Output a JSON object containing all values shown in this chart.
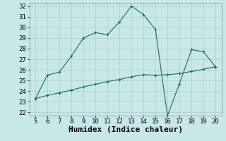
{
  "xlabel": "Humidex (Indice chaleur)",
  "background_color": "#c8e8e8",
  "line_color": "#1a6b5a",
  "xlim": [
    5,
    20
  ],
  "ylim": [
    22,
    32
  ],
  "xticks": [
    5,
    6,
    7,
    8,
    9,
    10,
    11,
    12,
    13,
    14,
    15,
    16,
    17,
    18,
    19,
    20
  ],
  "yticks": [
    22,
    23,
    24,
    25,
    26,
    27,
    28,
    29,
    30,
    31,
    32
  ],
  "curve1_x": [
    5,
    6,
    7,
    8,
    9,
    10,
    11,
    12,
    13,
    14,
    15,
    16,
    17,
    18,
    19,
    20
  ],
  "curve1_y": [
    23.3,
    25.5,
    25.8,
    27.3,
    29.0,
    29.5,
    29.3,
    30.5,
    32.0,
    31.2,
    29.8,
    21.7,
    24.7,
    27.9,
    27.7,
    26.3
  ],
  "curve2_x": [
    5,
    6,
    7,
    8,
    9,
    10,
    11,
    12,
    13,
    14,
    15,
    16,
    17,
    18,
    19,
    20
  ],
  "curve2_y": [
    23.3,
    23.6,
    23.85,
    24.1,
    24.4,
    24.65,
    24.9,
    25.1,
    25.35,
    25.55,
    25.5,
    25.55,
    25.65,
    25.85,
    26.05,
    26.3
  ],
  "grid_color": "#a8cece",
  "grid_major_color": "#b8d8d8",
  "tick_fontsize": 6.5,
  "xlabel_fontsize": 8
}
